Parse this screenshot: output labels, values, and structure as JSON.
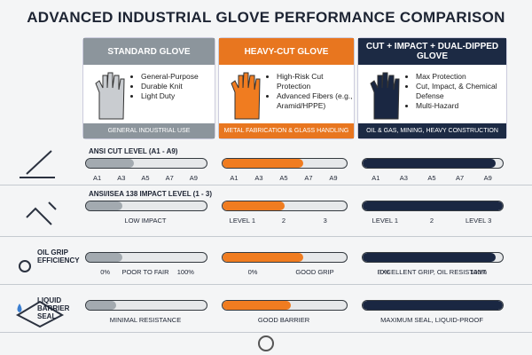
{
  "title": "ADVANCED INDUSTRIAL GLOVE PERFORMANCE COMPARISON",
  "columns": [
    {
      "header": "STANDARD GLOVE",
      "bullets": [
        "General-Purpose",
        "Durable Knit",
        "Light Duty"
      ],
      "footer": "GENERAL INDUSTRIAL USE",
      "color": "#8c959c",
      "fill": "#a3aab0"
    },
    {
      "header": "HEAVY-CUT GLOVE",
      "bullets": [
        "High-Risk Cut Protection",
        "Advanced Fibers (e.g., Aramid/HPPE)"
      ],
      "footer": "METAL FABRICATION & GLASS HANDLING",
      "color": "#e8761f",
      "fill": "#f07c20"
    },
    {
      "header": "CUT + IMPACT + DUAL-DIPPED GLOVE",
      "bullets": [
        "Max Protection",
        "Cut, Impact, & Chemical Defense",
        "Multi-Hazard"
      ],
      "footer": "OIL & GAS, MINING, HEAVY CONSTRUCTION",
      "color": "#1c2a44",
      "fill": "#1a2742"
    }
  ],
  "rows": [
    {
      "label": "ANSI CUT LEVEL (A1 - A9)",
      "cells": [
        {
          "fill": 40,
          "labels": [
            "A1",
            "A3",
            "A5",
            "A7",
            "A9"
          ]
        },
        {
          "fill": 65,
          "labels": [
            "A1",
            "A3",
            "A5",
            "A7",
            "A9"
          ]
        },
        {
          "fill": 95,
          "labels": [
            "A1",
            "A3",
            "A5",
            "A7",
            "A9"
          ]
        }
      ]
    },
    {
      "label": "ANSI/ISEA 138 IMPACT LEVEL (1 - 3)",
      "cells": [
        {
          "fill": 30,
          "labels": [
            "LOW IMPACT"
          ]
        },
        {
          "fill": 50,
          "labels": [
            "LEVEL 1",
            "2",
            "3"
          ]
        },
        {
          "fill": 100,
          "labels": [
            "LEVEL 1",
            "2",
            "LEVEL 3"
          ]
        }
      ]
    },
    {
      "label": "OIL GRIP EFFICIENCY",
      "cells": [
        {
          "fill": 30,
          "labels": [
            "0%",
            "POOR TO FAIR",
            "100%"
          ]
        },
        {
          "fill": 65,
          "labels": [
            "0%",
            "GOOD GRIP"
          ]
        },
        {
          "fill": 95,
          "labels": [
            "0%",
            "EXCELLENT GRIP, OIL RESISTANT",
            "100%"
          ]
        }
      ]
    },
    {
      "label": "LIQUID BARRIER SEAL",
      "cells": [
        {
          "fill": 25,
          "labels": [
            "MINIMAL RESISTANCE"
          ]
        },
        {
          "fill": 55,
          "labels": [
            "GOOD BARRIER"
          ]
        },
        {
          "fill": 100,
          "labels": [
            "MAXIMUM SEAL, LIQUID-PROOF"
          ]
        }
      ]
    }
  ]
}
